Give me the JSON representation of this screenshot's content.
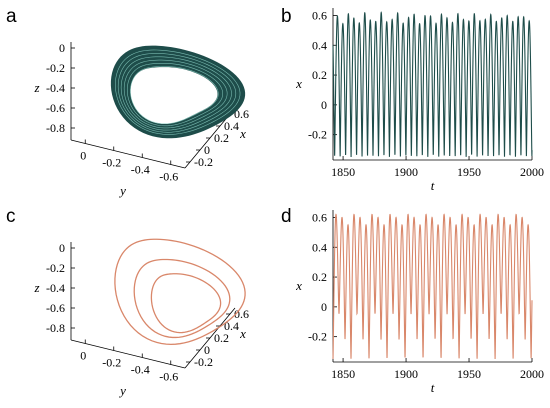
{
  "panels": [
    {
      "label": "a"
    },
    {
      "label": "b"
    },
    {
      "label": "c"
    },
    {
      "label": "d"
    }
  ],
  "colors": {
    "chaotic": "#1e4d4a",
    "chaotic_highlight": "#8fd3c8",
    "periodic": "#d9876a"
  },
  "chart_data": [
    {
      "panel": "a",
      "type": "scatter",
      "kind": "3d-phase-portrait",
      "xlabel": "x",
      "ylabel": "y",
      "zlabel": "z",
      "x_ticks": [
        "-0.2",
        "0",
        "0.2",
        "0.4",
        "0.6"
      ],
      "y_ticks": [
        "0",
        "-0.2",
        "-0.4",
        "-0.6"
      ],
      "z_ticks": [
        "0",
        "-0.2",
        "-0.4",
        "-0.6",
        "-0.8"
      ],
      "series": [
        {
          "values": "chaotic attractor (many loops)"
        }
      ]
    },
    {
      "panel": "b",
      "type": "line",
      "xlabel": "t",
      "ylabel": "x",
      "xlim": [
        1842,
        2000
      ],
      "ylim": [
        -0.37,
        0.65
      ],
      "x_ticks": [
        1850,
        1900,
        1950,
        2000
      ],
      "y_ticks": [
        -0.2,
        0,
        0.2,
        0.4,
        0.6
      ],
      "period": 4.35,
      "peak": 0.62,
      "trough": -0.35
    },
    {
      "panel": "c",
      "type": "scatter",
      "kind": "3d-phase-portrait",
      "xlabel": "x",
      "ylabel": "y",
      "zlabel": "z",
      "x_ticks": [
        "-0.2",
        "0",
        "0.2",
        "0.4",
        "0.6"
      ],
      "y_ticks": [
        "0",
        "-0.2",
        "-0.4",
        "-0.6"
      ],
      "z_ticks": [
        "0",
        "-0.2",
        "-0.4",
        "-0.6",
        "-0.8"
      ],
      "series": [
        {
          "values": "period-3 limit cycle"
        }
      ]
    },
    {
      "panel": "d",
      "type": "line",
      "xlabel": "t",
      "ylabel": "x",
      "xlim": [
        1842,
        2000
      ],
      "ylim": [
        -0.37,
        0.65
      ],
      "x_ticks": [
        1850,
        1900,
        1950,
        2000
      ],
      "y_ticks": [
        -0.2,
        0,
        0.2,
        0.4,
        0.6
      ],
      "period": 14.3,
      "peaks": [
        0.62,
        0.6,
        0.55
      ],
      "troughs": [
        -0.35,
        -0.05,
        -0.22
      ]
    }
  ]
}
